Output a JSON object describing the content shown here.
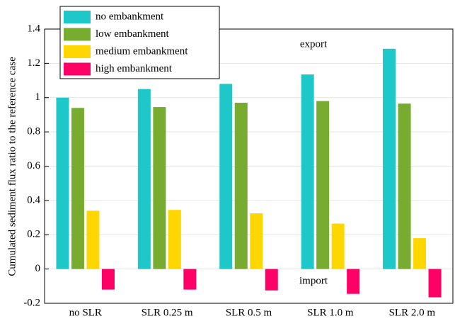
{
  "chart_data": {
    "type": "bar",
    "y_label": "Cumulated sediment flux ratio to the reference case",
    "categories": [
      "no SLR",
      "SLR 0.25 m",
      "SLR 0.5 m",
      "SLR 1.0 m",
      "SLR 2.0 m"
    ],
    "series": [
      {
        "name": "no embankment",
        "color": "#1ec8c8",
        "values": [
          1.0,
          1.05,
          1.08,
          1.135,
          1.285
        ]
      },
      {
        "name": "low embankment",
        "color": "#77ac30",
        "values": [
          0.94,
          0.945,
          0.97,
          0.98,
          0.965
        ]
      },
      {
        "name": "medium embankment",
        "color": "#ffd700",
        "values": [
          0.34,
          0.345,
          0.325,
          0.265,
          0.18
        ]
      },
      {
        "name": "high embankment",
        "color": "#ff0066",
        "values": [
          -0.12,
          -0.12,
          -0.125,
          -0.145,
          -0.165
        ]
      }
    ],
    "annotations": [
      "export",
      "import"
    ],
    "ylim": [
      -0.2,
      1.4
    ],
    "yticks": [
      -0.2,
      0,
      0.2,
      0.4,
      0.6,
      0.8,
      1,
      1.2,
      1.4
    ],
    "grid": true,
    "legend": "upper left"
  }
}
